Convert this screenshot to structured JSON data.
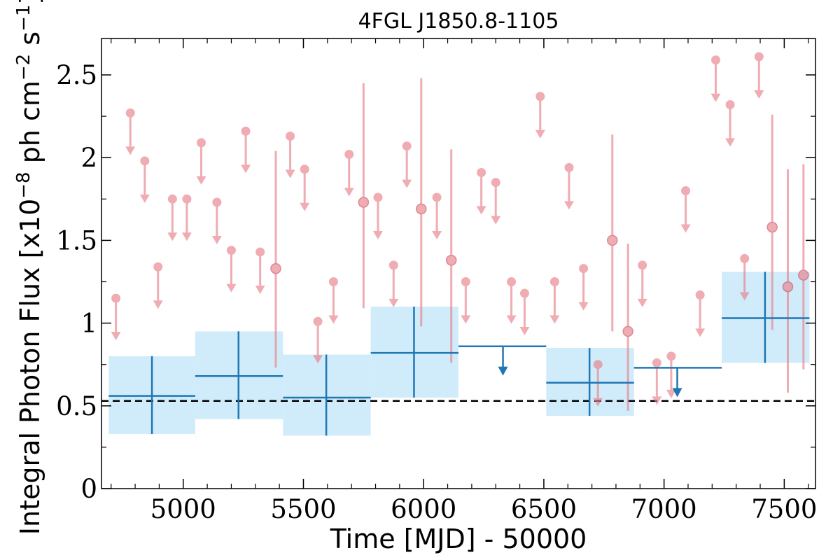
{
  "chart_data": {
    "type": "scatter",
    "title": "4FGL J1850.8-1105",
    "xlabel": "Time [MJD] - 50000",
    "ylabel": "Integral Photon Flux [x10",
    "ylabel_exp1": "−8",
    "ylabel_mid": " ph cm",
    "ylabel_exp2": "−2",
    "ylabel_mid2": " s",
    "ylabel_exp3": "−1",
    "ylabel_end": "]",
    "xlim": [
      4660,
      7630
    ],
    "ylim": [
      0,
      2.72
    ],
    "xticks": [
      5000,
      5500,
      6000,
      6500,
      7000,
      7500
    ],
    "xtick_labels": [
      "5000",
      "5500",
      "6000",
      "6500",
      "7000",
      "7500"
    ],
    "yticks": [
      0,
      0.5,
      1,
      1.5,
      2,
      2.5
    ],
    "ytick_labels": [
      "0",
      "0.5",
      "1",
      "1.5",
      "2",
      "2.5"
    ],
    "reference_line": 0.53,
    "colors": {
      "short_bins": "#e8808a",
      "long_bins": "#1f77b4",
      "long_band": "#d0ecfa",
      "reference": "#000000"
    },
    "short_upper_limits": [
      {
        "x": 4720,
        "y": 1.15
      },
      {
        "x": 4780,
        "y": 2.27
      },
      {
        "x": 4840,
        "y": 1.98
      },
      {
        "x": 4895,
        "y": 1.34
      },
      {
        "x": 4955,
        "y": 1.75
      },
      {
        "x": 5015,
        "y": 1.75
      },
      {
        "x": 5075,
        "y": 2.09
      },
      {
        "x": 5140,
        "y": 1.73
      },
      {
        "x": 5200,
        "y": 1.44
      },
      {
        "x": 5260,
        "y": 2.16
      },
      {
        "x": 5320,
        "y": 1.43
      },
      {
        "x": 5445,
        "y": 2.13
      },
      {
        "x": 5505,
        "y": 1.93
      },
      {
        "x": 5560,
        "y": 1.01
      },
      {
        "x": 5625,
        "y": 1.25
      },
      {
        "x": 5690,
        "y": 2.02
      },
      {
        "x": 5810,
        "y": 1.76
      },
      {
        "x": 5875,
        "y": 1.35
      },
      {
        "x": 5930,
        "y": 2.07
      },
      {
        "x": 6055,
        "y": 1.76
      },
      {
        "x": 6175,
        "y": 1.25
      },
      {
        "x": 6240,
        "y": 1.91
      },
      {
        "x": 6300,
        "y": 1.85
      },
      {
        "x": 6365,
        "y": 1.25
      },
      {
        "x": 6420,
        "y": 1.18
      },
      {
        "x": 6485,
        "y": 2.37
      },
      {
        "x": 6545,
        "y": 1.25
      },
      {
        "x": 6605,
        "y": 1.94
      },
      {
        "x": 6665,
        "y": 1.33
      },
      {
        "x": 6725,
        "y": 0.75
      },
      {
        "x": 6910,
        "y": 1.35
      },
      {
        "x": 6970,
        "y": 0.76
      },
      {
        "x": 7030,
        "y": 0.8
      },
      {
        "x": 7090,
        "y": 1.8
      },
      {
        "x": 7150,
        "y": 1.17
      },
      {
        "x": 7215,
        "y": 2.59
      },
      {
        "x": 7275,
        "y": 2.32
      },
      {
        "x": 7335,
        "y": 1.39
      },
      {
        "x": 7395,
        "y": 2.61
      }
    ],
    "short_detections": [
      {
        "x": 5385,
        "y": 1.33,
        "y_low": 0.73,
        "y_high": 2.04
      },
      {
        "x": 5750,
        "y": 1.73,
        "y_low": 1.09,
        "y_high": 2.45
      },
      {
        "x": 5990,
        "y": 1.69,
        "y_low": 0.98,
        "y_high": 2.48
      },
      {
        "x": 6115,
        "y": 1.38,
        "y_low": 0.76,
        "y_high": 2.05
      },
      {
        "x": 6785,
        "y": 1.5,
        "y_low": 0.95,
        "y_high": 2.14
      },
      {
        "x": 6850,
        "y": 0.95,
        "y_low": 0.47,
        "y_high": 1.48
      },
      {
        "x": 7450,
        "y": 1.58,
        "y_low": 0.96,
        "y_high": 2.26
      },
      {
        "x": 7515,
        "y": 1.22,
        "y_low": 0.58,
        "y_high": 1.93
      },
      {
        "x": 7580,
        "y": 1.29,
        "y_low": 0.72,
        "y_high": 1.96
      }
    ],
    "long_detections": [
      {
        "x0": 4690,
        "x1": 5050,
        "x": 4870,
        "y": 0.56,
        "y_low": 0.33,
        "y_high": 0.8
      },
      {
        "x0": 5050,
        "x1": 5415,
        "x": 5230,
        "y": 0.68,
        "y_low": 0.42,
        "y_high": 0.95
      },
      {
        "x0": 5415,
        "x1": 5780,
        "x": 5595,
        "y": 0.55,
        "y_low": 0.32,
        "y_high": 0.81
      },
      {
        "x0": 5780,
        "x1": 6145,
        "x": 5960,
        "y": 0.82,
        "y_low": 0.55,
        "y_high": 1.1
      },
      {
        "x0": 6510,
        "x1": 6875,
        "x": 6690,
        "y": 0.64,
        "y_low": 0.44,
        "y_high": 0.85
      },
      {
        "x0": 7240,
        "x1": 7605,
        "x": 7420,
        "y": 1.03,
        "y_low": 0.76,
        "y_high": 1.31
      }
    ],
    "long_upper_limits": [
      {
        "x0": 6145,
        "x1": 6510,
        "x": 6330,
        "y": 0.86
      },
      {
        "x0": 6875,
        "x1": 7240,
        "x": 7055,
        "y": 0.73
      }
    ]
  }
}
